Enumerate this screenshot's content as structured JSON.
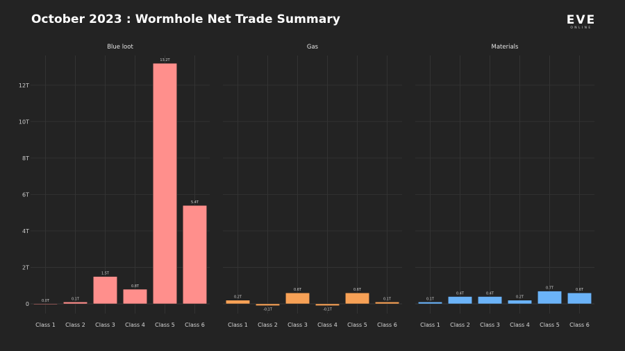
{
  "title": "October 2023 : Wormhole Net Trade Summary",
  "logo": {
    "main": "EVE",
    "sub": "ONLINE"
  },
  "chart_data": {
    "type": "bar",
    "layout": "faceted",
    "categories": [
      "Class 1",
      "Class 2",
      "Class 3",
      "Class 4",
      "Class 5",
      "Class 6"
    ],
    "y_ticks": [
      0,
      2,
      4,
      6,
      8,
      10,
      12
    ],
    "y_tick_labels": [
      "0",
      "2T",
      "4T",
      "6T",
      "8T",
      "10T",
      "12T"
    ],
    "ylim": [
      -0.5,
      13.5
    ],
    "unit": "trillion ISK",
    "grid": true,
    "panels": [
      {
        "title": "Blue loot",
        "color": "#ff8f8c",
        "values": [
          0.0,
          0.1,
          1.5,
          0.8,
          13.2,
          5.4
        ],
        "labels": [
          "0.0T",
          "0.1T",
          "1.5T",
          "0.8T",
          "13.2T",
          "5.4T"
        ]
      },
      {
        "title": "Gas",
        "color": "#f7a156",
        "values": [
          0.2,
          -0.1,
          0.6,
          -0.1,
          0.6,
          0.1
        ],
        "labels": [
          "0.2T",
          "-0.1T",
          "0.6T",
          "-0.1T",
          "0.6T",
          "0.1T"
        ]
      },
      {
        "title": "Materials",
        "color": "#6bb3f8",
        "values": [
          0.1,
          0.4,
          0.4,
          0.2,
          0.7,
          0.6
        ],
        "labels": [
          "0.1T",
          "0.4T",
          "0.4T",
          "0.2T",
          "0.7T",
          "0.6T"
        ]
      }
    ]
  }
}
